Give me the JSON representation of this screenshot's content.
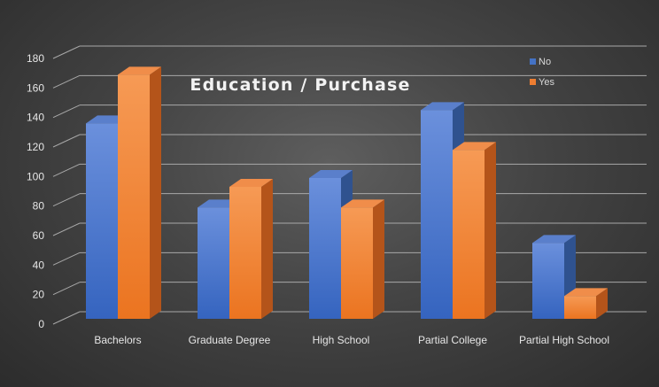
{
  "chart_data": {
    "type": "bar",
    "title": "Education / Purchase",
    "xlabel": "",
    "ylabel": "",
    "categories": [
      "Bachelors",
      "Graduate Degree",
      "High School",
      "Partial College",
      "Partial High School"
    ],
    "series": [
      {
        "name": "No",
        "color": "#4472c4",
        "values": [
          136,
          79,
          99,
          145,
          55
        ]
      },
      {
        "name": "Yes",
        "color": "#ed7d31",
        "values": [
          169,
          93,
          79,
          118,
          19
        ]
      }
    ],
    "ylim": [
      0,
      180
    ],
    "yticks": [
      0,
      20,
      40,
      60,
      80,
      100,
      120,
      140,
      160,
      180
    ],
    "grid": true,
    "legend_position": "top-right",
    "style": "3d-clustered-column"
  }
}
